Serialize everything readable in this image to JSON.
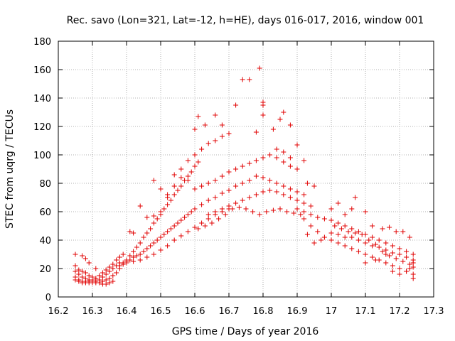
{
  "chart_data": {
    "type": "scatter",
    "title": "Rec. savo (Lon=321, Lat=-12, h=HE), days 016-017, 2016, window 001",
    "xlabel": "GPS time / Days of year 2016",
    "ylabel": "STEC from uqrg / TECUs",
    "xlim": [
      16.2,
      17.3
    ],
    "ylim": [
      0,
      180
    ],
    "xticks": [
      16.2,
      16.3,
      16.4,
      16.5,
      16.6,
      16.7,
      16.8,
      16.9,
      17.0,
      17.1,
      17.2,
      17.3
    ],
    "xtick_labels": [
      "16.2",
      "16.3",
      "16.4",
      "16.5",
      "16.6",
      "16.7",
      "16.8",
      "16.9",
      "17",
      "17.1",
      "17.2",
      "17.3"
    ],
    "yticks": [
      0,
      20,
      40,
      60,
      80,
      100,
      120,
      140,
      160,
      180
    ],
    "ytick_labels": [
      "0",
      "20",
      "40",
      "60",
      "80",
      "100",
      "120",
      "140",
      "160",
      "180"
    ],
    "grid": true,
    "marker": "+",
    "color": "#e00000",
    "series": [
      {
        "name": "STEC",
        "points": [
          [
            16.25,
            30
          ],
          [
            16.27,
            29
          ],
          [
            16.28,
            27
          ],
          [
            16.29,
            24
          ],
          [
            16.31,
            20
          ],
          [
            16.25,
            22
          ],
          [
            16.26,
            19
          ],
          [
            16.27,
            18
          ],
          [
            16.28,
            17
          ],
          [
            16.29,
            15
          ],
          [
            16.3,
            14
          ],
          [
            16.31,
            13
          ],
          [
            16.32,
            12
          ],
          [
            16.33,
            11
          ],
          [
            16.34,
            12
          ],
          [
            16.35,
            13
          ],
          [
            16.25,
            18
          ],
          [
            16.26,
            16
          ],
          [
            16.27,
            14
          ],
          [
            16.28,
            13
          ],
          [
            16.29,
            12
          ],
          [
            16.3,
            11
          ],
          [
            16.31,
            10
          ],
          [
            16.32,
            10
          ],
          [
            16.33,
            9
          ],
          [
            16.34,
            9
          ],
          [
            16.35,
            10
          ],
          [
            16.36,
            11
          ],
          [
            16.25,
            14
          ],
          [
            16.26,
            12
          ],
          [
            16.27,
            11
          ],
          [
            16.28,
            11
          ],
          [
            16.29,
            10
          ],
          [
            16.3,
            10
          ],
          [
            16.31,
            11
          ],
          [
            16.32,
            12
          ],
          [
            16.33,
            14
          ],
          [
            16.34,
            16
          ],
          [
            16.35,
            18
          ],
          [
            16.36,
            20
          ],
          [
            16.37,
            22
          ],
          [
            16.38,
            24
          ],
          [
            16.25,
            12
          ],
          [
            16.26,
            11
          ],
          [
            16.27,
            10
          ],
          [
            16.28,
            10
          ],
          [
            16.29,
            11
          ],
          [
            16.3,
            12
          ],
          [
            16.31,
            13
          ],
          [
            16.32,
            15
          ],
          [
            16.33,
            17
          ],
          [
            16.34,
            19
          ],
          [
            16.35,
            21
          ],
          [
            16.36,
            23
          ],
          [
            16.37,
            26
          ],
          [
            16.38,
            28
          ],
          [
            16.39,
            30
          ],
          [
            16.36,
            15
          ],
          [
            16.37,
            17
          ],
          [
            16.38,
            20
          ],
          [
            16.39,
            23
          ],
          [
            16.4,
            26
          ],
          [
            16.41,
            29
          ],
          [
            16.42,
            32
          ],
          [
            16.43,
            35
          ],
          [
            16.44,
            38
          ],
          [
            16.45,
            42
          ],
          [
            16.46,
            45
          ],
          [
            16.47,
            48
          ],
          [
            16.48,
            52
          ],
          [
            16.49,
            55
          ],
          [
            16.5,
            58
          ],
          [
            16.51,
            62
          ],
          [
            16.52,
            65
          ],
          [
            16.53,
            68
          ],
          [
            16.54,
            72
          ],
          [
            16.55,
            75
          ],
          [
            16.56,
            78
          ],
          [
            16.57,
            82
          ],
          [
            16.58,
            85
          ],
          [
            16.59,
            88
          ],
          [
            16.6,
            92
          ],
          [
            16.61,
            95
          ],
          [
            16.38,
            22
          ],
          [
            16.39,
            24
          ],
          [
            16.4,
            25
          ],
          [
            16.41,
            26
          ],
          [
            16.42,
            28
          ],
          [
            16.43,
            29
          ],
          [
            16.44,
            30
          ],
          [
            16.45,
            32
          ],
          [
            16.46,
            34
          ],
          [
            16.47,
            36
          ],
          [
            16.48,
            38
          ],
          [
            16.49,
            40
          ],
          [
            16.5,
            42
          ],
          [
            16.51,
            44
          ],
          [
            16.52,
            46
          ],
          [
            16.53,
            48
          ],
          [
            16.54,
            50
          ],
          [
            16.55,
            52
          ],
          [
            16.56,
            54
          ],
          [
            16.57,
            56
          ],
          [
            16.58,
            58
          ],
          [
            16.59,
            60
          ],
          [
            16.6,
            62
          ],
          [
            16.4,
            24
          ],
          [
            16.42,
            25
          ],
          [
            16.44,
            26
          ],
          [
            16.46,
            28
          ],
          [
            16.48,
            30
          ],
          [
            16.5,
            33
          ],
          [
            16.52,
            36
          ],
          [
            16.54,
            40
          ],
          [
            16.56,
            43
          ],
          [
            16.58,
            46
          ],
          [
            16.6,
            49
          ],
          [
            16.62,
            52
          ],
          [
            16.64,
            55
          ],
          [
            16.66,
            58
          ],
          [
            16.68,
            60
          ],
          [
            16.7,
            62
          ],
          [
            16.41,
            46
          ],
          [
            16.42,
            45
          ],
          [
            16.44,
            64
          ],
          [
            16.46,
            56
          ],
          [
            16.48,
            57
          ],
          [
            16.5,
            60
          ],
          [
            16.52,
            70
          ],
          [
            16.54,
            86
          ],
          [
            16.56,
            90
          ],
          [
            16.58,
            96
          ],
          [
            16.6,
            100
          ],
          [
            16.62,
            104
          ],
          [
            16.64,
            108
          ],
          [
            16.66,
            110
          ],
          [
            16.68,
            113
          ],
          [
            16.7,
            115
          ],
          [
            16.48,
            82
          ],
          [
            16.5,
            76
          ],
          [
            16.52,
            72
          ],
          [
            16.54,
            78
          ],
          [
            16.56,
            84
          ],
          [
            16.58,
            82
          ],
          [
            16.6,
            118
          ],
          [
            16.61,
            127
          ],
          [
            16.63,
            121
          ],
          [
            16.66,
            128
          ],
          [
            16.68,
            121
          ],
          [
            16.72,
            135
          ],
          [
            16.74,
            153
          ],
          [
            16.76,
            153
          ],
          [
            16.79,
            161
          ],
          [
            16.8,
            137
          ],
          [
            16.8,
            135
          ],
          [
            16.61,
            48
          ],
          [
            16.63,
            50
          ],
          [
            16.65,
            52
          ],
          [
            16.67,
            55
          ],
          [
            16.69,
            58
          ],
          [
            16.71,
            62
          ],
          [
            16.73,
            63
          ],
          [
            16.75,
            62
          ],
          [
            16.77,
            60
          ],
          [
            16.79,
            58
          ],
          [
            16.81,
            60
          ],
          [
            16.83,
            61
          ],
          [
            16.85,
            62
          ],
          [
            16.87,
            60
          ],
          [
            16.89,
            59
          ],
          [
            16.91,
            58
          ],
          [
            16.6,
            76
          ],
          [
            16.62,
            78
          ],
          [
            16.64,
            80
          ],
          [
            16.66,
            82
          ],
          [
            16.68,
            85
          ],
          [
            16.7,
            88
          ],
          [
            16.72,
            90
          ],
          [
            16.74,
            92
          ],
          [
            16.76,
            94
          ],
          [
            16.78,
            96
          ],
          [
            16.8,
            98
          ],
          [
            16.82,
            100
          ],
          [
            16.84,
            98
          ],
          [
            16.86,
            95
          ],
          [
            16.88,
            92
          ],
          [
            16.9,
            90
          ],
          [
            16.62,
            65
          ],
          [
            16.64,
            68
          ],
          [
            16.66,
            70
          ],
          [
            16.68,
            73
          ],
          [
            16.7,
            75
          ],
          [
            16.72,
            78
          ],
          [
            16.74,
            80
          ],
          [
            16.76,
            82
          ],
          [
            16.78,
            85
          ],
          [
            16.8,
            84
          ],
          [
            16.82,
            82
          ],
          [
            16.84,
            80
          ],
          [
            16.86,
            78
          ],
          [
            16.88,
            76
          ],
          [
            16.9,
            74
          ],
          [
            16.92,
            72
          ],
          [
            16.64,
            58
          ],
          [
            16.66,
            60
          ],
          [
            16.68,
            62
          ],
          [
            16.7,
            64
          ],
          [
            16.72,
            66
          ],
          [
            16.74,
            68
          ],
          [
            16.76,
            70
          ],
          [
            16.78,
            72
          ],
          [
            16.8,
            74
          ],
          [
            16.82,
            75
          ],
          [
            16.84,
            74
          ],
          [
            16.86,
            72
          ],
          [
            16.88,
            70
          ],
          [
            16.9,
            68
          ],
          [
            16.92,
            66
          ],
          [
            16.94,
            64
          ],
          [
            16.78,
            116
          ],
          [
            16.8,
            128
          ],
          [
            16.83,
            118
          ],
          [
            16.85,
            125
          ],
          [
            16.86,
            130
          ],
          [
            16.88,
            121
          ],
          [
            16.84,
            104
          ],
          [
            16.86,
            102
          ],
          [
            16.88,
            98
          ],
          [
            16.9,
            107
          ],
          [
            16.92,
            96
          ],
          [
            16.93,
            80
          ],
          [
            16.95,
            78
          ],
          [
            16.9,
            62
          ],
          [
            16.92,
            60
          ],
          [
            16.94,
            58
          ],
          [
            16.96,
            56
          ],
          [
            16.98,
            55
          ],
          [
            17.0,
            54
          ],
          [
            17.02,
            52
          ],
          [
            17.04,
            50
          ],
          [
            17.06,
            48
          ],
          [
            17.08,
            46
          ],
          [
            17.1,
            44
          ],
          [
            17.12,
            42
          ],
          [
            17.14,
            40
          ],
          [
            17.16,
            38
          ],
          [
            17.18,
            36
          ],
          [
            17.2,
            34
          ],
          [
            17.22,
            32
          ],
          [
            17.24,
            30
          ],
          [
            16.92,
            55
          ],
          [
            16.94,
            50
          ],
          [
            16.96,
            46
          ],
          [
            16.98,
            42
          ],
          [
            17.0,
            40
          ],
          [
            17.02,
            38
          ],
          [
            17.04,
            36
          ],
          [
            17.06,
            34
          ],
          [
            17.08,
            32
          ],
          [
            17.1,
            30
          ],
          [
            17.12,
            28
          ],
          [
            17.14,
            26
          ],
          [
            17.16,
            24
          ],
          [
            17.18,
            22
          ],
          [
            17.2,
            20
          ],
          [
            17.22,
            18
          ],
          [
            17.24,
            16
          ],
          [
            16.93,
            44
          ],
          [
            16.95,
            38
          ],
          [
            16.97,
            40
          ],
          [
            17.0,
            62
          ],
          [
            17.02,
            66
          ],
          [
            17.04,
            58
          ],
          [
            17.06,
            62
          ],
          [
            17.07,
            70
          ],
          [
            17.1,
            60
          ],
          [
            17.12,
            50
          ],
          [
            17.15,
            48
          ],
          [
            17.17,
            49
          ],
          [
            17.19,
            46
          ],
          [
            17.21,
            46
          ],
          [
            17.23,
            42
          ],
          [
            17.0,
            45
          ],
          [
            17.02,
            44
          ],
          [
            17.04,
            42
          ],
          [
            17.06,
            42
          ],
          [
            17.08,
            40
          ],
          [
            17.1,
            38
          ],
          [
            17.12,
            36
          ],
          [
            17.14,
            35
          ],
          [
            17.16,
            33
          ],
          [
            17.18,
            31
          ],
          [
            17.2,
            30
          ],
          [
            17.22,
            28
          ],
          [
            17.24,
            26
          ],
          [
            17.01,
            50
          ],
          [
            17.03,
            48
          ],
          [
            17.05,
            46
          ],
          [
            17.07,
            45
          ],
          [
            17.09,
            44
          ],
          [
            17.11,
            40
          ],
          [
            17.13,
            37
          ],
          [
            17.15,
            32
          ],
          [
            17.17,
            29
          ],
          [
            17.19,
            27
          ],
          [
            17.21,
            25
          ],
          [
            17.23,
            23
          ],
          [
            17.24,
            21
          ],
          [
            17.1,
            24
          ],
          [
            17.13,
            26
          ],
          [
            17.16,
            30
          ],
          [
            17.18,
            18
          ],
          [
            17.2,
            16
          ],
          [
            17.22,
            18
          ],
          [
            17.23,
            20
          ],
          [
            17.24,
            13
          ],
          [
            17.24,
            24
          ]
        ]
      }
    ]
  }
}
